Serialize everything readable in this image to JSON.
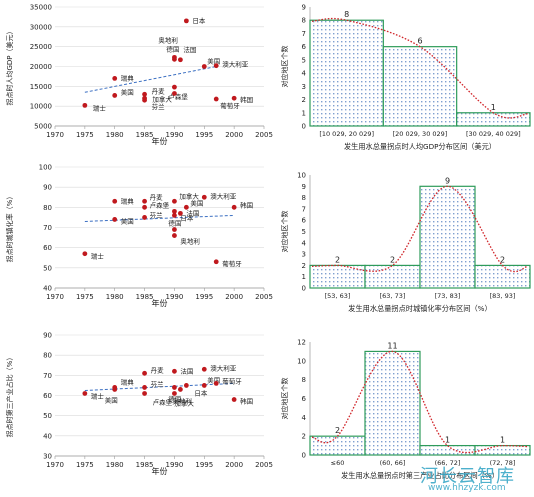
{
  "watermark": {
    "brand": "河长云智库",
    "url": "www.hhzyzk.com"
  },
  "chart_data": [
    {
      "type": "scatter",
      "xlabel": "年份",
      "ylabel": "拐点时人均GDP（美元）",
      "xlim": [
        1970,
        2005
      ],
      "ylim": [
        5000,
        35000
      ],
      "xticks": [
        1970,
        1975,
        1980,
        1985,
        1990,
        1995,
        2000,
        2005
      ],
      "yticks": [
        5000,
        10000,
        15000,
        20000,
        25000,
        30000,
        35000
      ],
      "trendline": {
        "x1": 1975,
        "y1": 13500,
        "x2": 1997,
        "y2": 20000
      },
      "points": [
        {
          "x": 1975,
          "y": 10200,
          "label": "瑞士"
        },
        {
          "x": 1980,
          "y": 17000,
          "label": "瑞典"
        },
        {
          "x": 1980,
          "y": 12700,
          "label": "美国"
        },
        {
          "x": 1985,
          "y": 13000,
          "label": "丹麦"
        },
        {
          "x": 1985,
          "y": 12000,
          "label": "芬兰"
        },
        {
          "x": 1985,
          "y": 11500,
          "label": ""
        },
        {
          "x": 1990,
          "y": 22300,
          "label": "奥地利"
        },
        {
          "x": 1990,
          "y": 21800,
          "label": "德国"
        },
        {
          "x": 1990,
          "y": 14800,
          "label": "卢森堡"
        },
        {
          "x": 1990,
          "y": 13200,
          "label": "加拿大"
        },
        {
          "x": 1991,
          "y": 21700,
          "label": "法国"
        },
        {
          "x": 1992,
          "y": 31500,
          "label": "日本"
        },
        {
          "x": 1995,
          "y": 20000,
          "label": "美国"
        },
        {
          "x": 1997,
          "y": 20200,
          "label": "澳大利亚"
        },
        {
          "x": 1997,
          "y": 11800,
          "label": "葡萄牙"
        },
        {
          "x": 2000,
          "y": 12000,
          "label": "韩国"
        }
      ]
    },
    {
      "type": "bar",
      "xlabel": "发生用水总量拐点时人均GDP分布区间（美元）",
      "ylabel": "对应地区个数",
      "categories": [
        "[10 029, 20 029]",
        "[20 029, 30 029]",
        "[30 029, 40 029]"
      ],
      "values": [
        8,
        6,
        1
      ],
      "ylim": [
        0,
        9
      ],
      "yticks": [
        0,
        1,
        2,
        3,
        4,
        5,
        6,
        7,
        8,
        9
      ],
      "curve": true
    },
    {
      "type": "scatter",
      "xlabel": "年份",
      "ylabel": "拐点时城镇化率（%）",
      "xlim": [
        1970,
        2005
      ],
      "ylim": [
        40,
        100
      ],
      "xticks": [
        1970,
        1975,
        1980,
        1985,
        1990,
        1995,
        2000,
        2005
      ],
      "yticks": [
        40,
        50,
        60,
        70,
        80,
        90,
        100
      ],
      "trendline": {
        "x1": 1975,
        "y1": 73,
        "x2": 2000,
        "y2": 76
      },
      "points": [
        {
          "x": 1975,
          "y": 57,
          "label": "瑞士"
        },
        {
          "x": 1980,
          "y": 83,
          "label": "瑞典"
        },
        {
          "x": 1980,
          "y": 74,
          "label": "美国"
        },
        {
          "x": 1985,
          "y": 83,
          "label": "丹麦"
        },
        {
          "x": 1985,
          "y": 80,
          "label": "卢森堡"
        },
        {
          "x": 1985,
          "y": 75,
          "label": "芬兰"
        },
        {
          "x": 1990,
          "y": 83,
          "label": "加拿大"
        },
        {
          "x": 1990,
          "y": 78,
          "label": ""
        },
        {
          "x": 1990,
          "y": 76,
          "label": "日本"
        },
        {
          "x": 1990,
          "y": 69,
          "label": "德国"
        },
        {
          "x": 1990,
          "y": 66,
          "label": "奥地利"
        },
        {
          "x": 1991,
          "y": 77,
          "label": "法国"
        },
        {
          "x": 1992,
          "y": 80,
          "label": "美国"
        },
        {
          "x": 1995,
          "y": 85,
          "label": "澳大利亚"
        },
        {
          "x": 1997,
          "y": 53,
          "label": "葡萄牙"
        },
        {
          "x": 2000,
          "y": 80,
          "label": "韩国"
        }
      ]
    },
    {
      "type": "bar",
      "xlabel": "发生用水总量拐点时城镇化率分布区间（%）",
      "ylabel": "对应地区个数",
      "categories": [
        "[53, 63]",
        "[63, 73]",
        "[73, 83]",
        "[83, 93]"
      ],
      "values": [
        2,
        2,
        9,
        2
      ],
      "ylim": [
        0,
        10
      ],
      "yticks": [
        0,
        1,
        2,
        3,
        4,
        5,
        6,
        7,
        8,
        9,
        10
      ],
      "curve": true
    },
    {
      "type": "scatter",
      "xlabel": "年份",
      "ylabel": "拐点时第三产业占比（%）",
      "xlim": [
        1970,
        2005
      ],
      "ylim": [
        30,
        90
      ],
      "xticks": [
        1970,
        1975,
        1980,
        1985,
        1990,
        1995,
        2000,
        2005
      ],
      "yticks": [
        30,
        40,
        50,
        60,
        70,
        80,
        90
      ],
      "trendline": {
        "x1": 1975,
        "y1": 62.5,
        "x2": 2000,
        "y2": 66
      },
      "points": [
        {
          "x": 1975,
          "y": 61,
          "label": "瑞士"
        },
        {
          "x": 1980,
          "y": 64,
          "label": "瑞典"
        },
        {
          "x": 1980,
          "y": 63,
          "label": "美国"
        },
        {
          "x": 1985,
          "y": 71,
          "label": "丹麦"
        },
        {
          "x": 1985,
          "y": 64,
          "label": "芬兰"
        },
        {
          "x": 1985,
          "y": 61,
          "label": "卢森堡"
        },
        {
          "x": 1990,
          "y": 72,
          "label": "法国"
        },
        {
          "x": 1990,
          "y": 64,
          "label": "德国"
        },
        {
          "x": 1990,
          "y": 61,
          "label": "奥地利"
        },
        {
          "x": 1991,
          "y": 63,
          "label": "加拿大"
        },
        {
          "x": 1992,
          "y": 65,
          "label": "日本"
        },
        {
          "x": 1995,
          "y": 73,
          "label": "澳大利亚"
        },
        {
          "x": 1995,
          "y": 65,
          "label": "美国"
        },
        {
          "x": 1997,
          "y": 66,
          "label": "葡萄牙"
        },
        {
          "x": 2000,
          "y": 58,
          "label": "韩国"
        }
      ]
    },
    {
      "type": "bar",
      "xlabel": "发生用水总量拐点时第三产业占比分布区间（%）",
      "ylabel": "对应地区个数",
      "categories": [
        "≤60",
        "(60, 66]",
        "(66, 72]",
        "(72, 78]"
      ],
      "values": [
        2,
        11,
        1,
        1
      ],
      "ylim": [
        0,
        12
      ],
      "yticks": [
        0,
        2,
        4,
        6,
        8,
        10,
        12
      ],
      "curve": true
    }
  ]
}
